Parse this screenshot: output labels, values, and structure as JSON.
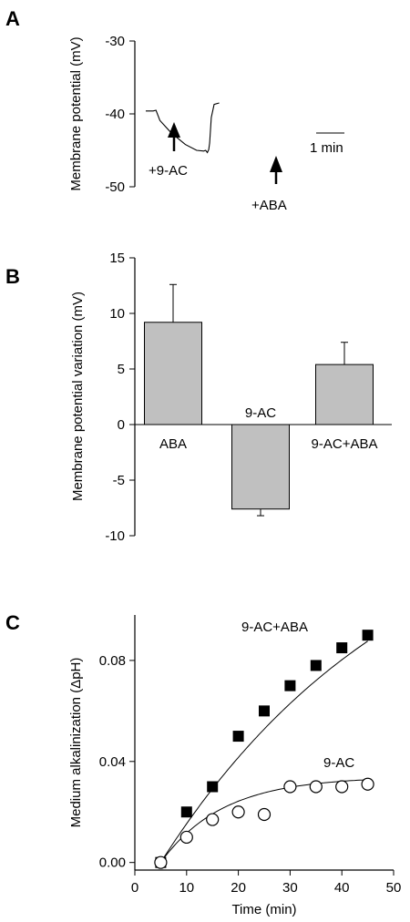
{
  "chart_data": [
    {
      "panel": "A",
      "type": "line",
      "ylabel": "Membrane potential (mV)",
      "ylim": [
        -50,
        -30
      ],
      "yticks": [
        -30,
        -40,
        -50
      ],
      "time_x": [
        0,
        0.26,
        0.36,
        0.5,
        0.9,
        1.4,
        1.8,
        2.05,
        2.12,
        2.18,
        2.23,
        2.26,
        2.32,
        2.42,
        2.6
      ],
      "values": [
        -39.6,
        -39.6,
        -39.5,
        -40.9,
        -42.6,
        -44.2,
        -45.0,
        -45.1,
        -45.0,
        -45.3,
        -44.9,
        -44.0,
        -40.5,
        -38.7,
        -38.5
      ],
      "annotations": {
        "treatment1": "+9-AC",
        "treatment2": "+ABA",
        "scale": "1 min"
      },
      "scale_bar_minutes": 1
    },
    {
      "panel": "B",
      "type": "bar",
      "ylabel": "Membrane potential variation (mV)",
      "ylim": [
        -10,
        15
      ],
      "yticks": [
        15,
        10,
        5,
        0,
        -5,
        -10
      ],
      "categories": [
        "ABA",
        "9-AC",
        "9-AC+ABA"
      ],
      "values": [
        9.2,
        -7.6,
        5.4
      ],
      "errors": [
        3.4,
        0.6,
        2.0
      ],
      "bar_color": "#c0c0c0"
    },
    {
      "panel": "C",
      "type": "scatter",
      "xlabel": "Time (min)",
      "ylabel": "Medium alkalinization (ΔpH)",
      "xlim": [
        0,
        50
      ],
      "ylim": [
        -0.003,
        0.098
      ],
      "xticks": [
        0,
        10,
        20,
        30,
        40,
        50
      ],
      "yticks": [
        "0.00",
        "0.04",
        "0.08"
      ],
      "ytick_values": [
        0,
        0.04,
        0.08
      ],
      "series": [
        {
          "name": "9-AC+ABA",
          "marker": "filled-square",
          "x": [
            5,
            10,
            15,
            20,
            25,
            30,
            35,
            40,
            45
          ],
          "y": [
            0.0,
            0.02,
            0.03,
            0.05,
            0.06,
            0.07,
            0.078,
            0.085,
            0.09
          ]
        },
        {
          "name": "9-AC",
          "marker": "open-circle",
          "x": [
            5,
            10,
            15,
            20,
            25,
            30,
            35,
            40,
            45
          ],
          "y": [
            0.0,
            0.01,
            0.017,
            0.02,
            0.019,
            0.03,
            0.03,
            0.03,
            0.031
          ]
        }
      ]
    }
  ],
  "panels": {
    "a": "A",
    "b": "B",
    "c": "C"
  }
}
